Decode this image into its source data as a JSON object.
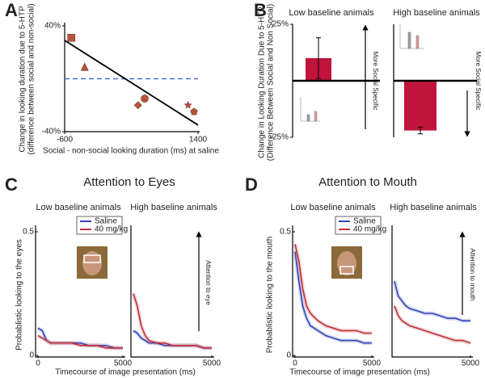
{
  "chart_data": [
    {
      "type": "scatter",
      "panel": "A",
      "ylabel": [
        "Change in looking duration due to 5-HTP",
        "(difference between social and non-social)"
      ],
      "xlabel": "Social - non-social looking duration (ms) at saline",
      "x": [
        -500,
        -300,
        500,
        600,
        1250,
        1340
      ],
      "values": [
        31,
        9,
        -20,
        -15,
        -20,
        -25
      ],
      "markers": [
        "square",
        "triangle",
        "diamond",
        "circle",
        "star",
        "pentagon"
      ],
      "color": "#b5533c",
      "fit": {
        "x": [
          -600,
          1400
        ],
        "values": [
          29,
          -35
        ]
      },
      "hline": 0,
      "hline_color": "#4a6fd6",
      "xlim": [
        -600,
        1400
      ],
      "ylim": [
        -40,
        40
      ],
      "xticks": [
        -600,
        1400
      ],
      "yticks": [
        {
          "value": 40,
          "label": "40%"
        },
        {
          "value": -40,
          "label": "-40%"
        }
      ]
    },
    {
      "type": "bar",
      "panel": "B",
      "subtitle": "Low baseline animals",
      "ylabel": [
        "Change in Looking Duration Due to 5-HTP",
        "(Difference Between Social and Non Social)"
      ],
      "annotation": "More Social Specific",
      "values": [
        10
      ],
      "errors": [
        9
      ],
      "color": "#c0143c",
      "ylim": [
        -25,
        25
      ],
      "yticks": [
        {
          "value": 25,
          "label": "25%"
        },
        {
          "value": -25,
          "label": "-25%"
        }
      ]
    },
    {
      "type": "bar",
      "subtitle": "High baseline animals",
      "annotation": "More Social Specific",
      "values": [
        -22
      ],
      "errors": [
        1.5
      ],
      "color": "#c0143c",
      "ylim": [
        -25,
        25
      ]
    },
    {
      "type": "line",
      "panel": "C",
      "title": "Attention to Eyes",
      "subtitle": "Low baseline animals",
      "ylabel": "Probablistic looking to the eyes",
      "xlabel": "Timecourse of image presentation (ms)",
      "x": [
        0,
        250,
        500,
        750,
        1000,
        1500,
        2000,
        2500,
        3000,
        3500,
        4000,
        4500,
        5000
      ],
      "series": [
        {
          "name": "Saline",
          "color": "#3344bb",
          "values": [
            0.11,
            0.1,
            0.06,
            0.05,
            0.05,
            0.05,
            0.05,
            0.05,
            0.04,
            0.04,
            0.04,
            0.03,
            0.03
          ]
        },
        {
          "name": "40 mg/kg",
          "color": "#c0303a",
          "values": [
            0.08,
            0.07,
            0.06,
            0.05,
            0.05,
            0.05,
            0.05,
            0.04,
            0.04,
            0.04,
            0.03,
            0.03,
            0.03
          ]
        }
      ],
      "xlim": [
        0,
        5000
      ],
      "ylim": [
        0,
        0.5
      ],
      "xticks": [
        0,
        5000
      ],
      "yticks": [
        0,
        0.5
      ]
    },
    {
      "type": "line",
      "subtitle": "High baseline animals",
      "annotation": "Attention to eye",
      "x": [
        0,
        250,
        500,
        750,
        1000,
        1500,
        2000,
        2500,
        3000,
        3500,
        4000,
        4500,
        5000
      ],
      "series": [
        {
          "color": "#3344bb",
          "values": [
            0.1,
            0.09,
            0.07,
            0.06,
            0.05,
            0.05,
            0.04,
            0.04,
            0.04,
            0.04,
            0.04,
            0.03,
            0.03
          ]
        },
        {
          "color": "#c0303a",
          "values": [
            0.25,
            0.2,
            0.12,
            0.08,
            0.06,
            0.05,
            0.05,
            0.04,
            0.04,
            0.04,
            0.04,
            0.03,
            0.03
          ]
        }
      ],
      "xlim": [
        0,
        5000
      ],
      "ylim": [
        0,
        0.5
      ],
      "xticks": [
        5000
      ]
    },
    {
      "type": "line",
      "panel": "D",
      "title": "Attention to Mouth",
      "subtitle": "Low baseline animals",
      "ylabel": "Probablistic looking to the mouth",
      "xlabel": "Timecourse of image presentation (ms)",
      "x": [
        0,
        250,
        500,
        750,
        1000,
        1500,
        2000,
        2500,
        3000,
        3500,
        4000,
        4500,
        5000
      ],
      "series": [
        {
          "name": "Saline",
          "color": "#3344bb",
          "values": [
            0.42,
            0.3,
            0.2,
            0.15,
            0.12,
            0.1,
            0.08,
            0.07,
            0.06,
            0.06,
            0.06,
            0.05,
            0.05
          ]
        },
        {
          "name": "40 mg/kg",
          "color": "#c0303a",
          "values": [
            0.45,
            0.38,
            0.27,
            0.2,
            0.17,
            0.14,
            0.12,
            0.11,
            0.1,
            0.1,
            0.1,
            0.09,
            0.09
          ]
        }
      ],
      "xlim": [
        0,
        5000
      ],
      "ylim": [
        0,
        0.5
      ],
      "xticks": [
        0,
        5000
      ],
      "yticks": [
        0,
        0.5
      ]
    },
    {
      "type": "line",
      "subtitle": "High baseline animals",
      "annotation": "Attention to mouth",
      "x": [
        0,
        250,
        500,
        750,
        1000,
        1500,
        2000,
        2500,
        3000,
        3500,
        4000,
        4500,
        5000
      ],
      "series": [
        {
          "color": "#3344bb",
          "values": [
            0.3,
            0.24,
            0.22,
            0.2,
            0.19,
            0.18,
            0.17,
            0.17,
            0.16,
            0.15,
            0.15,
            0.14,
            0.14
          ]
        },
        {
          "color": "#c0303a",
          "values": [
            0.2,
            0.16,
            0.14,
            0.13,
            0.12,
            0.11,
            0.1,
            0.09,
            0.08,
            0.07,
            0.06,
            0.06,
            0.05
          ]
        }
      ],
      "xlim": [
        0,
        5000
      ],
      "ylim": [
        0,
        0.5
      ],
      "xticks": [
        5000
      ]
    }
  ]
}
